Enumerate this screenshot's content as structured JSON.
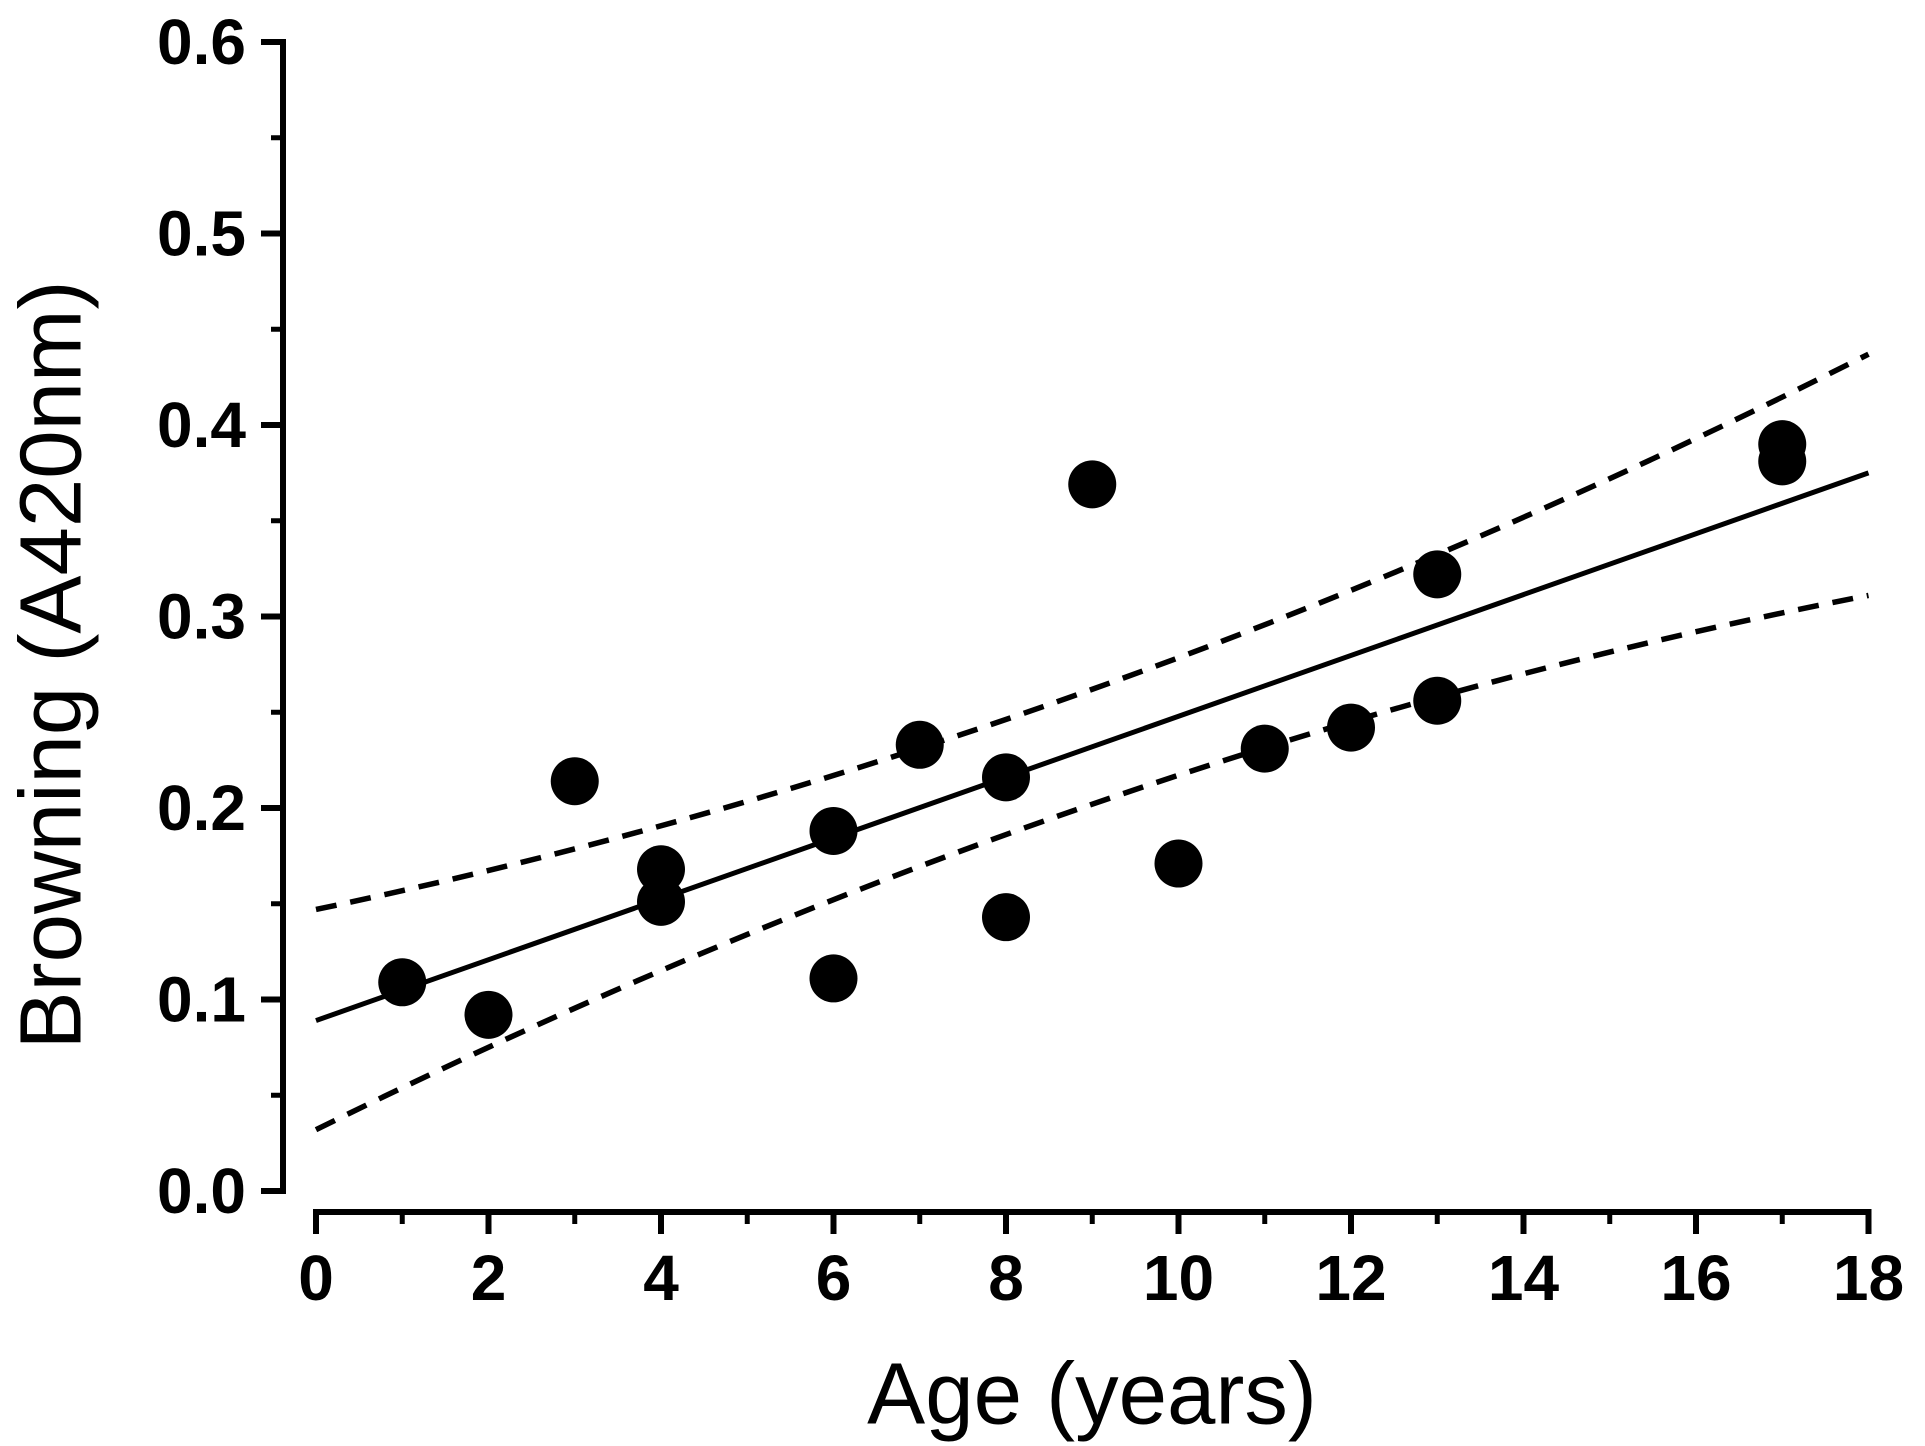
{
  "figure": {
    "background": "#ffffff",
    "ink_color": "#000000"
  },
  "chart_data": {
    "type": "scatter",
    "title": "",
    "xlabel": "Age (years)",
    "ylabel": "Browning (A420nm)",
    "xlim": [
      0,
      18
    ],
    "ylim": [
      0.0,
      0.6
    ],
    "grid": false,
    "legend": null,
    "x_major_ticks": [
      0,
      2,
      4,
      6,
      8,
      10,
      12,
      14,
      16,
      18
    ],
    "x_tick_labels": [
      "0",
      "2",
      "4",
      "6",
      "8",
      "10",
      "12",
      "14",
      "16",
      "18"
    ],
    "x_minor_ticks": [
      1,
      3,
      5,
      7,
      9,
      11,
      13,
      15,
      17
    ],
    "y_major_ticks": [
      0.0,
      0.1,
      0.2,
      0.3,
      0.4,
      0.5,
      0.6
    ],
    "y_tick_labels": [
      "0.0",
      "0.1",
      "0.2",
      "0.3",
      "0.4",
      "0.5",
      "0.6"
    ],
    "y_minor_ticks": [
      0.05,
      0.15,
      0.25,
      0.35,
      0.45,
      0.55
    ],
    "points": [
      {
        "x": 1,
        "y": 0.109
      },
      {
        "x": 2,
        "y": 0.092
      },
      {
        "x": 3,
        "y": 0.214
      },
      {
        "x": 4,
        "y": 0.168
      },
      {
        "x": 4,
        "y": 0.151
      },
      {
        "x": 6,
        "y": 0.188
      },
      {
        "x": 6,
        "y": 0.111
      },
      {
        "x": 7,
        "y": 0.233
      },
      {
        "x": 8,
        "y": 0.216
      },
      {
        "x": 8,
        "y": 0.143
      },
      {
        "x": 9,
        "y": 0.369
      },
      {
        "x": 10,
        "y": 0.171
      },
      {
        "x": 11,
        "y": 0.231
      },
      {
        "x": 12,
        "y": 0.242
      },
      {
        "x": 13,
        "y": 0.322
      },
      {
        "x": 13,
        "y": 0.256
      },
      {
        "x": 17,
        "y": 0.39
      },
      {
        "x": 17,
        "y": 0.381
      }
    ],
    "regression_line": {
      "x1": 0,
      "y1": 0.089,
      "x2": 18,
      "y2": 0.375
    },
    "ci_upper": {
      "start": [
        0,
        0.147
      ],
      "control": [
        9,
        0.232
      ],
      "end": [
        18,
        0.437
      ]
    },
    "ci_lower": {
      "start": [
        0,
        0.032
      ],
      "control": [
        9,
        0.2325
      ],
      "end": [
        18,
        0.311
      ]
    },
    "marker": {
      "shape": "circle",
      "fill": "#000000",
      "radius_px": 24
    },
    "line_styles": {
      "regression": "solid",
      "confidence_bands": "dashed"
    }
  }
}
